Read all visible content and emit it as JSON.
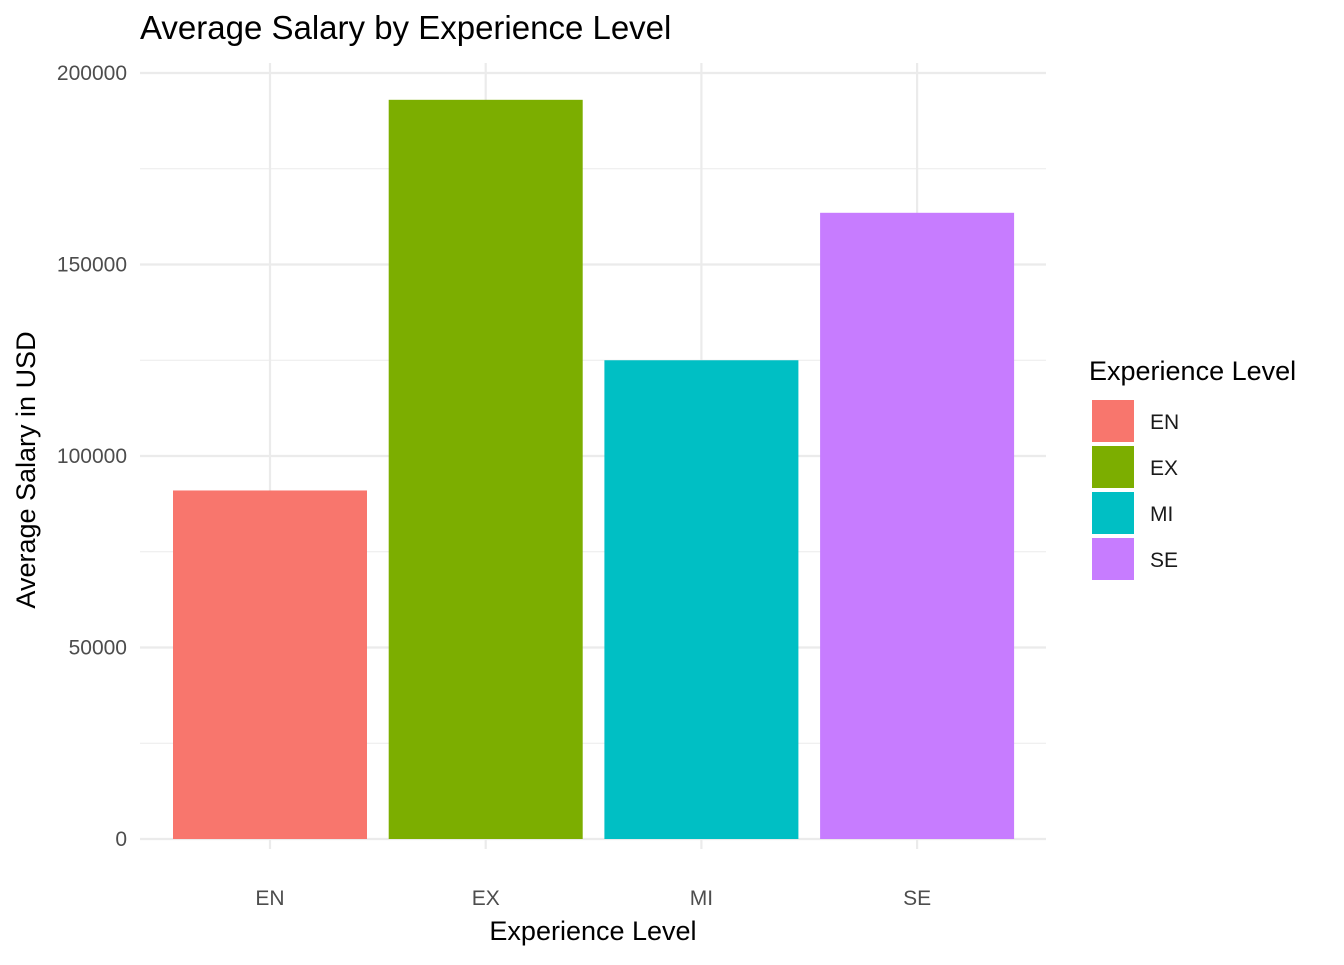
{
  "chart_data": {
    "type": "bar",
    "title": "Average Salary by Experience Level",
    "xlabel": "Experience Level",
    "ylabel": "Average Salary in USD",
    "categories": [
      "EN",
      "EX",
      "MI",
      "SE"
    ],
    "values": [
      91000,
      193000,
      125000,
      163500
    ],
    "colors": [
      "#F8766D",
      "#7CAE00",
      "#00BFC4",
      "#C77CFF"
    ],
    "ylim": [
      0,
      200000
    ],
    "yticks": [
      0,
      50000,
      100000,
      150000,
      200000
    ],
    "ytick_labels": [
      "0",
      "50000",
      "100000",
      "150000",
      "200000"
    ],
    "grid": true,
    "legend": {
      "title": "Experience Level",
      "position": "right",
      "items": [
        "EN",
        "EX",
        "MI",
        "SE"
      ]
    }
  }
}
